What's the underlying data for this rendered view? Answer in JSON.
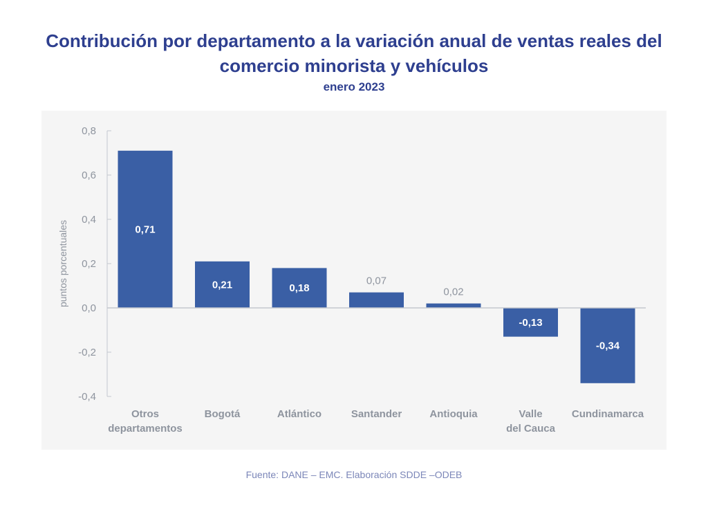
{
  "header": {
    "title_line1": "Contribución por departamento a la variación anual de ventas reales del",
    "title_line2": "comercio minorista y vehículos",
    "subtitle": "enero 2023"
  },
  "footer": {
    "source": "Fuente: DANE – EMC. Elaboración SDDE –ODEB"
  },
  "chart_data": {
    "type": "bar",
    "title": "Contribución por departamento a la variación anual de ventas reales del comercio minorista y vehículos",
    "subtitle": "enero 2023",
    "xlabel": "",
    "ylabel": "puntos porcentuales",
    "ylim": [
      -0.4,
      0.8
    ],
    "yticks": [
      0.8,
      0.6,
      0.4,
      0.2,
      0.0,
      -0.2,
      -0.4
    ],
    "ytick_labels": [
      "0,8",
      "0,6",
      "0,4",
      "0,2",
      "0,0",
      "-0,2",
      "-0,4"
    ],
    "grid": false,
    "legend": "none",
    "categories": [
      [
        "Otros",
        "departamentos"
      ],
      [
        "Bogotá"
      ],
      [
        "Atlántico"
      ],
      [
        "Santander"
      ],
      [
        "Antioquia"
      ],
      [
        "Valle",
        "del Cauca"
      ],
      [
        "Cundinamarca"
      ]
    ],
    "values": [
      0.71,
      0.21,
      0.18,
      0.07,
      0.02,
      -0.13,
      -0.34
    ],
    "data_labels": [
      "0,71",
      "0,21",
      "0,18",
      "0,07",
      "0,02",
      "-0,13",
      "-0,34"
    ],
    "colors": {
      "bar": "#3a5fa5",
      "label_inside": "#ffffff",
      "label_outside": "#8e949e",
      "axis": "#c4c8cf",
      "tick_text": "#8e949e"
    }
  }
}
